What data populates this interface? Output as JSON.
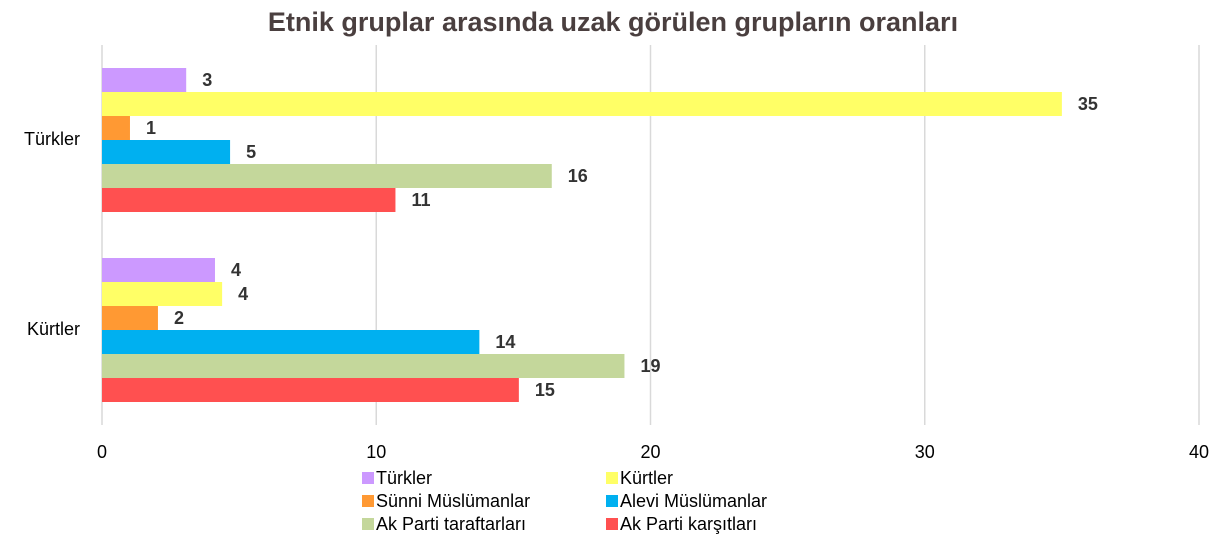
{
  "chart_data": {
    "type": "hbar",
    "title": "Etnik gruplar arasında uzak görülen grupların oranları",
    "categories": [
      "Türkler",
      "Kürtler"
    ],
    "series": [
      {
        "name": "Türkler",
        "color": "#cc99ff",
        "values": [
          3.07,
          4.12
        ],
        "value_labels": [
          "3",
          "4"
        ]
      },
      {
        "name": "Kürtler",
        "color": "#ffff66",
        "values": [
          35.0,
          4.38
        ],
        "value_labels": [
          "35",
          "4"
        ]
      },
      {
        "name": "Sünni Müslümanlar",
        "color": "#ff9933",
        "values": [
          1.02,
          2.04
        ],
        "value_labels": [
          "1",
          "2"
        ]
      },
      {
        "name": "Alevi Müslümanlar",
        "color": "#00b0f0",
        "values": [
          4.67,
          13.76
        ],
        "value_labels": [
          "5",
          "14"
        ]
      },
      {
        "name": "Ak Parti taraftarları",
        "color": "#c4d79b",
        "values": [
          16.4,
          19.05
        ],
        "value_labels": [
          "16",
          "19"
        ]
      },
      {
        "name": "Ak Parti karşıtları",
        "color": "#ff5050",
        "values": [
          10.7,
          15.2
        ],
        "value_labels": [
          "11",
          "15"
        ]
      }
    ],
    "xlim": [
      0,
      40
    ],
    "xticks": [
      0,
      10,
      20,
      30,
      40
    ],
    "grid": true
  }
}
